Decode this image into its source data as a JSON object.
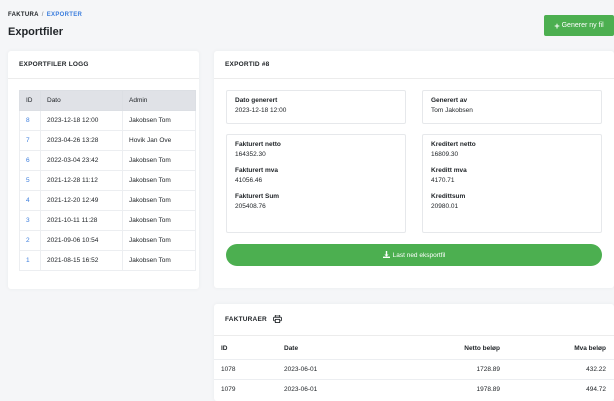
{
  "breadcrumb": {
    "root": "FAKTURA",
    "separator": "/",
    "current": "EXPORTER"
  },
  "page_title": "Exportfiler",
  "generate_button": "Generer ny fil",
  "log": {
    "title": "EXPORTFILER LOGG",
    "headers": [
      "ID",
      "Dato",
      "Admin"
    ],
    "rows": [
      {
        "id": "8",
        "date": "2023-12-18 12:00",
        "admin": "Jakobsen Tom"
      },
      {
        "id": "7",
        "date": "2023-04-26 13:28",
        "admin": "Hovik Jan Ove"
      },
      {
        "id": "6",
        "date": "2022-03-04 23:42",
        "admin": "Jakobsen Tom"
      },
      {
        "id": "5",
        "date": "2021-12-28 11:12",
        "admin": "Jakobsen Tom"
      },
      {
        "id": "4",
        "date": "2021-12-20 12:49",
        "admin": "Jakobsen Tom"
      },
      {
        "id": "3",
        "date": "2021-10-11 11:28",
        "admin": "Jakobsen Tom"
      },
      {
        "id": "2",
        "date": "2021-09-06 10:54",
        "admin": "Jakobsen Tom"
      },
      {
        "id": "1",
        "date": "2021-08-15 16:52",
        "admin": "Jakobsen Tom"
      }
    ]
  },
  "export": {
    "title": "EXPORTID #8",
    "date_label": "Dato generert",
    "date_value": "2023-12-18 12:00",
    "by_label": "Generert av",
    "by_value": "Tom Jakobsen",
    "net_label": "Fakturert netto",
    "net_value": "164352.30",
    "vat_label": "Fakturert mva",
    "vat_value": "41056.46",
    "sum_label": "Fakturert Sum",
    "sum_value": "205408.76",
    "credit_net_label": "Kreditert netto",
    "credit_net_value": "16809.30",
    "credit_vat_label": "Kreditt mva",
    "credit_vat_value": "4170.71",
    "credit_sum_label": "Kredittsum",
    "credit_sum_value": "20980.01",
    "download_button": "Last ned eksportfil"
  },
  "invoices": {
    "title": "FAKTURAER",
    "headers": [
      "ID",
      "Date",
      "Netto beløp",
      "Mva beløp"
    ],
    "rows": [
      {
        "id": "1078",
        "date": "2023-06-01",
        "net": "1728.89",
        "vat": "432.22"
      },
      {
        "id": "1079",
        "date": "2023-06-01",
        "net": "1978.89",
        "vat": "494.72"
      }
    ]
  },
  "colors": {
    "accent": "#3b7ddd",
    "button": "#4caf50"
  }
}
